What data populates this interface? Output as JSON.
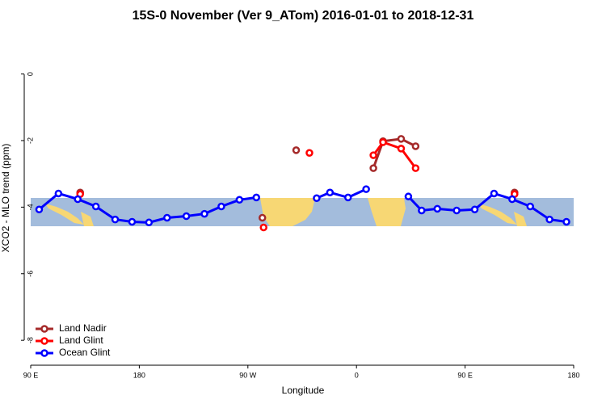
{
  "chart_data": {
    "type": "line",
    "title": "15S-0 November (Ver 9_ATom)   2016-01-01 to 2018-12-31",
    "xlabel": "Longitude",
    "ylabel": "XCO2 - MLO trend (ppm)",
    "xlim": [
      90,
      540
    ],
    "ylim": [
      -8.7,
      1.3
    ],
    "xticks": [
      {
        "value": 90,
        "label": "90 E"
      },
      180,
      {
        "value": 270,
        "label": "90 W"
      },
      {
        "value": 360,
        "label": "0"
      },
      {
        "value": 450,
        "label": "90 E"
      },
      {
        "value": 540,
        "label": "180"
      }
    ],
    "yticks": [
      0,
      -2,
      -4,
      -6,
      -8
    ],
    "legend": "bottom-left",
    "series": [
      {
        "name": "Land Nadir",
        "color": "#a52a2a",
        "x": [
          131,
          null,
          282,
          null,
          310,
          null,
          374,
          382,
          397,
          409,
          null,
          491
        ],
        "values": [
          -3.56,
          null,
          -4.32,
          null,
          -2.29,
          null,
          -2.83,
          -2.02,
          -1.95,
          -2.17,
          null,
          -3.56
        ]
      },
      {
        "name": "Land Glint",
        "color": "#ff0000",
        "x": [
          131,
          null,
          283,
          null,
          321,
          null,
          374,
          382,
          397,
          409,
          null,
          491
        ],
        "values": [
          -3.61,
          null,
          -4.61,
          null,
          -2.37,
          null,
          -2.44,
          -2.05,
          -2.24,
          -2.83,
          null,
          -3.61
        ]
      },
      {
        "name": "Ocean Glint",
        "color": "#0000ff",
        "x": [
          97,
          113,
          129,
          144,
          160,
          174,
          188,
          203,
          219,
          234,
          248,
          263,
          277,
          null,
          327,
          338,
          353,
          368,
          null,
          403,
          414,
          427,
          443,
          458,
          474,
          489,
          504,
          520,
          534
        ],
        "values": [
          -4.07,
          -3.59,
          -3.76,
          -3.98,
          -4.37,
          -4.44,
          -4.46,
          -4.32,
          -4.27,
          -4.2,
          -3.98,
          -3.78,
          -3.71,
          null,
          -3.73,
          -3.56,
          -3.71,
          -3.46,
          null,
          -3.68,
          -4.1,
          -4.05,
          -4.1,
          -4.07,
          -3.59,
          -3.76,
          -3.98,
          -4.37,
          -4.44
        ]
      }
    ]
  }
}
